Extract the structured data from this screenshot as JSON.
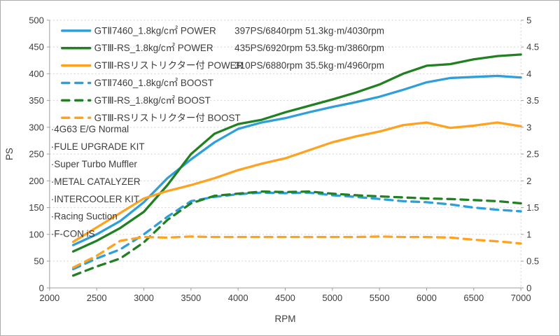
{
  "chart_data": {
    "type": "line",
    "title": "",
    "xlabel": "RPM",
    "ylabel_left": "PS",
    "ylabel_right": "",
    "x_range": [
      2000,
      7000
    ],
    "x_ticks": [
      2000,
      2500,
      3000,
      3500,
      4000,
      4500,
      5000,
      5500,
      6000,
      6500,
      7000
    ],
    "y_left_range": [
      0,
      500
    ],
    "y_left_ticks": [
      0,
      50,
      100,
      150,
      200,
      250,
      300,
      350,
      400,
      450,
      500
    ],
    "y_right_range": [
      0,
      5
    ],
    "y_right_ticks": [
      0,
      0.5,
      1,
      1.5,
      2,
      2.5,
      3,
      3.5,
      4,
      4.5,
      5
    ],
    "grid": "horizontal-dotted, vertical line at 7000 only",
    "legend_position": "inside-top-left",
    "x": [
      2250,
      2500,
      2750,
      3000,
      3250,
      3500,
      3750,
      4000,
      4250,
      4500,
      4750,
      5000,
      5250,
      5500,
      5750,
      6000,
      6250,
      6500,
      6750,
      7000
    ],
    "series": [
      {
        "name": "GTⅡ7460_1.8kg/c㎡ POWER",
        "stats": "397PS/6840rpm 51.3kg·m/4030rpm",
        "color": "#2E9FD9",
        "dash": "solid",
        "axis": "left",
        "values": [
          80,
          100,
          125,
          160,
          205,
          240,
          272,
          297,
          309,
          317,
          328,
          338,
          347,
          357,
          370,
          384,
          392,
          394,
          396,
          393
        ]
      },
      {
        "name": "GTⅢ-RS_1.8kg/c㎡ POWER",
        "stats": "435PS/6920rpm 53.5kg·m/3860rpm",
        "color": "#218021",
        "dash": "solid",
        "axis": "left",
        "values": [
          68,
          88,
          112,
          142,
          192,
          250,
          288,
          306,
          314,
          328,
          340,
          352,
          365,
          380,
          400,
          415,
          418,
          427,
          433,
          436
        ]
      },
      {
        "name": "GTⅢ-RSリストリクター付 POWER",
        "stats": "310PS/6880rpm 35.5kg·m/4960rpm",
        "color": "#FFA21F",
        "dash": "solid",
        "axis": "left",
        "values": [
          86,
          113,
          140,
          167,
          181,
          192,
          205,
          220,
          232,
          242,
          257,
          272,
          283,
          292,
          304,
          309,
          299,
          303,
          309,
          302
        ]
      },
      {
        "name": "GTⅡ7460_1.8kg/c㎡ BOOST",
        "stats": "",
        "color": "#2E9FD9",
        "dash": "dashed",
        "axis": "right",
        "values": [
          0.35,
          0.55,
          0.72,
          1.0,
          1.33,
          1.62,
          1.7,
          1.75,
          1.78,
          1.77,
          1.78,
          1.73,
          1.7,
          1.66,
          1.62,
          1.6,
          1.56,
          1.5,
          1.46,
          1.43
        ]
      },
      {
        "name": "GTⅢ-RS_1.8kg/c㎡ BOOST",
        "stats": "",
        "color": "#218021",
        "dash": "dashed",
        "axis": "right",
        "values": [
          0.23,
          0.4,
          0.55,
          0.85,
          1.27,
          1.58,
          1.72,
          1.76,
          1.8,
          1.79,
          1.8,
          1.76,
          1.73,
          1.71,
          1.69,
          1.67,
          1.66,
          1.64,
          1.62,
          1.58
        ]
      },
      {
        "name": "GTⅢ-RSリストリクター付 BOOST",
        "stats": "",
        "color": "#FFA21F",
        "dash": "dashed",
        "axis": "right",
        "values": [
          0.38,
          0.6,
          0.88,
          0.95,
          0.94,
          0.96,
          0.95,
          0.95,
          0.95,
          0.95,
          0.95,
          0.95,
          0.95,
          0.96,
          0.95,
          0.95,
          0.94,
          0.9,
          0.87,
          0.83
        ]
      }
    ],
    "annotations": [
      "·4G63 E/G Normal",
      "·FULE UPGRADE KIT",
      "·Super Turbo Muffler",
      "·METAL CATALYZER",
      "·INTERCOOLER KIT",
      "·Racing Suction",
      "·F-CON iS"
    ]
  },
  "colors": {
    "grid": "#d0d0d0",
    "axis": "#9e9e9e",
    "text": "#3d3d3d",
    "background": "#ffffff",
    "border": "#ababab"
  }
}
